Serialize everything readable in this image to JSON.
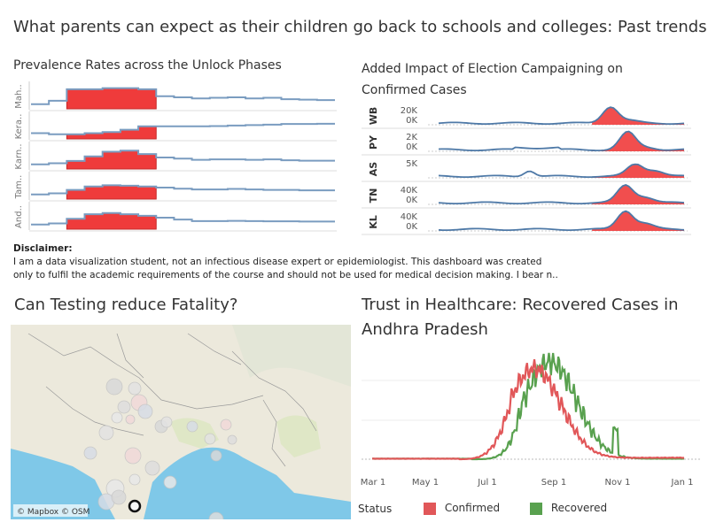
{
  "dashboard": {
    "title": "What parents can expect as their children go back to schools and colleges: Past trends"
  },
  "prevalence": {
    "title": "Prevalence Rates across the Unlock Phases",
    "states": [
      "Mah..",
      "Kera..",
      "Karn..",
      "Tam..",
      "And.."
    ]
  },
  "election": {
    "title": "Added Impact of Election Campaigning on Confirmed Cases",
    "rows": [
      {
        "state": "WB",
        "ticks": [
          "20K",
          "0K"
        ]
      },
      {
        "state": "PY",
        "ticks": [
          "2K",
          "0K"
        ]
      },
      {
        "state": "AS",
        "ticks": [
          "5K"
        ]
      },
      {
        "state": "TN",
        "ticks": [
          "40K",
          "0K"
        ]
      },
      {
        "state": "KL",
        "ticks": [
          "40K",
          "0K"
        ]
      }
    ]
  },
  "disclaimer": {
    "heading": "Disclaimer:",
    "line1": "I am a data visualization student, not an infectious disease expert or epidemiologist. This dashboard was created",
    "line2": "only to fulfil the academic requirements of the course and should not be used for medical decision making. I bear n.."
  },
  "testing": {
    "title": "Can Testing reduce Fatality?",
    "attribution": "© Mapbox © OSM"
  },
  "trust": {
    "title": "Trust in Healthcare: Recovered Cases in Andhra Pradesh",
    "x_ticks": [
      "Mar 1",
      "May 1",
      "Jul 1",
      "Sep 1",
      "Nov 1",
      "Jan 1"
    ],
    "legend_title": "Status",
    "legend": [
      {
        "label": "Confirmed",
        "color": "#e15759"
      },
      {
        "label": "Recovered",
        "color": "#59a14f"
      }
    ]
  },
  "colors": {
    "line_blue": "#7a9cc0",
    "area_red": "#ef3b3b",
    "dark_blue": "#4e79a7"
  }
}
